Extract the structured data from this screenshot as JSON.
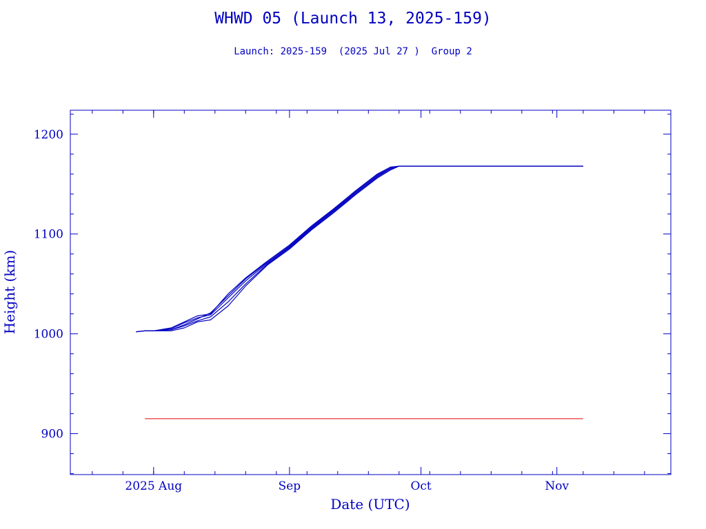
{
  "chart_data": {
    "type": "line",
    "title": "WHWD 05 (Launch 13, 2025-159)",
    "subtitle": "Launch: 2025-159  (2025 Jul 27 )  Group 2",
    "xlabel": "Date (UTC)",
    "ylabel": "Height (km)",
    "x_range": [
      "2025-07-13",
      "2025-11-27"
    ],
    "y_range": [
      859,
      1224
    ],
    "x_ticks": [
      {
        "date": "2025-08-01",
        "label": "2025 Aug"
      },
      {
        "date": "2025-09-01",
        "label": "Sep"
      },
      {
        "date": "2025-10-01",
        "label": "Oct"
      },
      {
        "date": "2025-11-01",
        "label": "Nov"
      }
    ],
    "y_ticks": [
      900,
      1000,
      1100,
      1200
    ],
    "grid": false,
    "colors": {
      "axis": "#0000c0",
      "series": "#0000c0",
      "reference": "#e00000"
    },
    "series": [
      {
        "values": [
          [
            "2025-07-28",
            1002
          ],
          [
            "2025-07-30",
            1003
          ],
          [
            "2025-08-01",
            1003
          ],
          [
            "2025-08-05",
            1004
          ],
          [
            "2025-08-08",
            1008
          ],
          [
            "2025-08-11",
            1013
          ],
          [
            "2025-08-14",
            1017
          ],
          [
            "2025-08-18",
            1032
          ],
          [
            "2025-08-22",
            1050
          ],
          [
            "2025-08-27",
            1070
          ],
          [
            "2025-09-01",
            1086
          ],
          [
            "2025-09-06",
            1105
          ],
          [
            "2025-09-11",
            1122
          ],
          [
            "2025-09-16",
            1140
          ],
          [
            "2025-09-21",
            1157
          ],
          [
            "2025-09-24",
            1165
          ],
          [
            "2025-09-26",
            1168
          ],
          [
            "2025-11-07",
            1168
          ]
        ]
      },
      {
        "values": [
          [
            "2025-07-28",
            1002
          ],
          [
            "2025-07-30",
            1003
          ],
          [
            "2025-08-01",
            1003
          ],
          [
            "2025-08-05",
            1005
          ],
          [
            "2025-08-08",
            1011
          ],
          [
            "2025-08-11",
            1016
          ],
          [
            "2025-08-14",
            1019
          ],
          [
            "2025-08-18",
            1036
          ],
          [
            "2025-08-22",
            1053
          ],
          [
            "2025-08-27",
            1071
          ],
          [
            "2025-09-01",
            1087
          ],
          [
            "2025-09-06",
            1106
          ],
          [
            "2025-09-11",
            1123
          ],
          [
            "2025-09-16",
            1141
          ],
          [
            "2025-09-21",
            1158
          ],
          [
            "2025-09-24",
            1166
          ],
          [
            "2025-09-26",
            1168
          ],
          [
            "2025-11-07",
            1168
          ]
        ]
      },
      {
        "values": [
          [
            "2025-07-28",
            1002
          ],
          [
            "2025-07-30",
            1003
          ],
          [
            "2025-08-01",
            1003
          ],
          [
            "2025-08-05",
            1004
          ],
          [
            "2025-08-08",
            1009
          ],
          [
            "2025-08-11",
            1015
          ],
          [
            "2025-08-14",
            1021
          ],
          [
            "2025-08-18",
            1038
          ],
          [
            "2025-08-22",
            1055
          ],
          [
            "2025-08-27",
            1072
          ],
          [
            "2025-09-01",
            1088
          ],
          [
            "2025-09-06",
            1107
          ],
          [
            "2025-09-11",
            1124
          ],
          [
            "2025-09-16",
            1142
          ],
          [
            "2025-09-21",
            1159
          ],
          [
            "2025-09-24",
            1166
          ],
          [
            "2025-09-26",
            1168
          ],
          [
            "2025-11-07",
            1168
          ]
        ]
      },
      {
        "values": [
          [
            "2025-07-28",
            1002
          ],
          [
            "2025-07-30",
            1003
          ],
          [
            "2025-08-01",
            1003
          ],
          [
            "2025-08-05",
            1003
          ],
          [
            "2025-08-08",
            1006
          ],
          [
            "2025-08-11",
            1012
          ],
          [
            "2025-08-14",
            1014
          ],
          [
            "2025-08-18",
            1028
          ],
          [
            "2025-08-22",
            1048
          ],
          [
            "2025-08-27",
            1069
          ],
          [
            "2025-09-01",
            1085
          ],
          [
            "2025-09-06",
            1104
          ],
          [
            "2025-09-11",
            1121
          ],
          [
            "2025-09-16",
            1139
          ],
          [
            "2025-09-21",
            1156
          ],
          [
            "2025-09-24",
            1164
          ],
          [
            "2025-09-26",
            1168
          ],
          [
            "2025-11-07",
            1168
          ]
        ]
      },
      {
        "values": [
          [
            "2025-07-28",
            1002
          ],
          [
            "2025-07-30",
            1003
          ],
          [
            "2025-08-01",
            1003
          ],
          [
            "2025-08-05",
            1006
          ],
          [
            "2025-08-08",
            1012
          ],
          [
            "2025-08-11",
            1018
          ],
          [
            "2025-08-14",
            1020
          ],
          [
            "2025-08-18",
            1040
          ],
          [
            "2025-08-22",
            1056
          ],
          [
            "2025-08-27",
            1073
          ],
          [
            "2025-09-01",
            1089
          ],
          [
            "2025-09-06",
            1108
          ],
          [
            "2025-09-11",
            1125
          ],
          [
            "2025-09-16",
            1143
          ],
          [
            "2025-09-21",
            1160
          ],
          [
            "2025-09-24",
            1167
          ],
          [
            "2025-09-26",
            1168
          ],
          [
            "2025-11-07",
            1168
          ]
        ]
      }
    ],
    "reference_line": {
      "value": 915,
      "x_start": "2025-07-30",
      "x_end": "2025-11-07"
    }
  }
}
